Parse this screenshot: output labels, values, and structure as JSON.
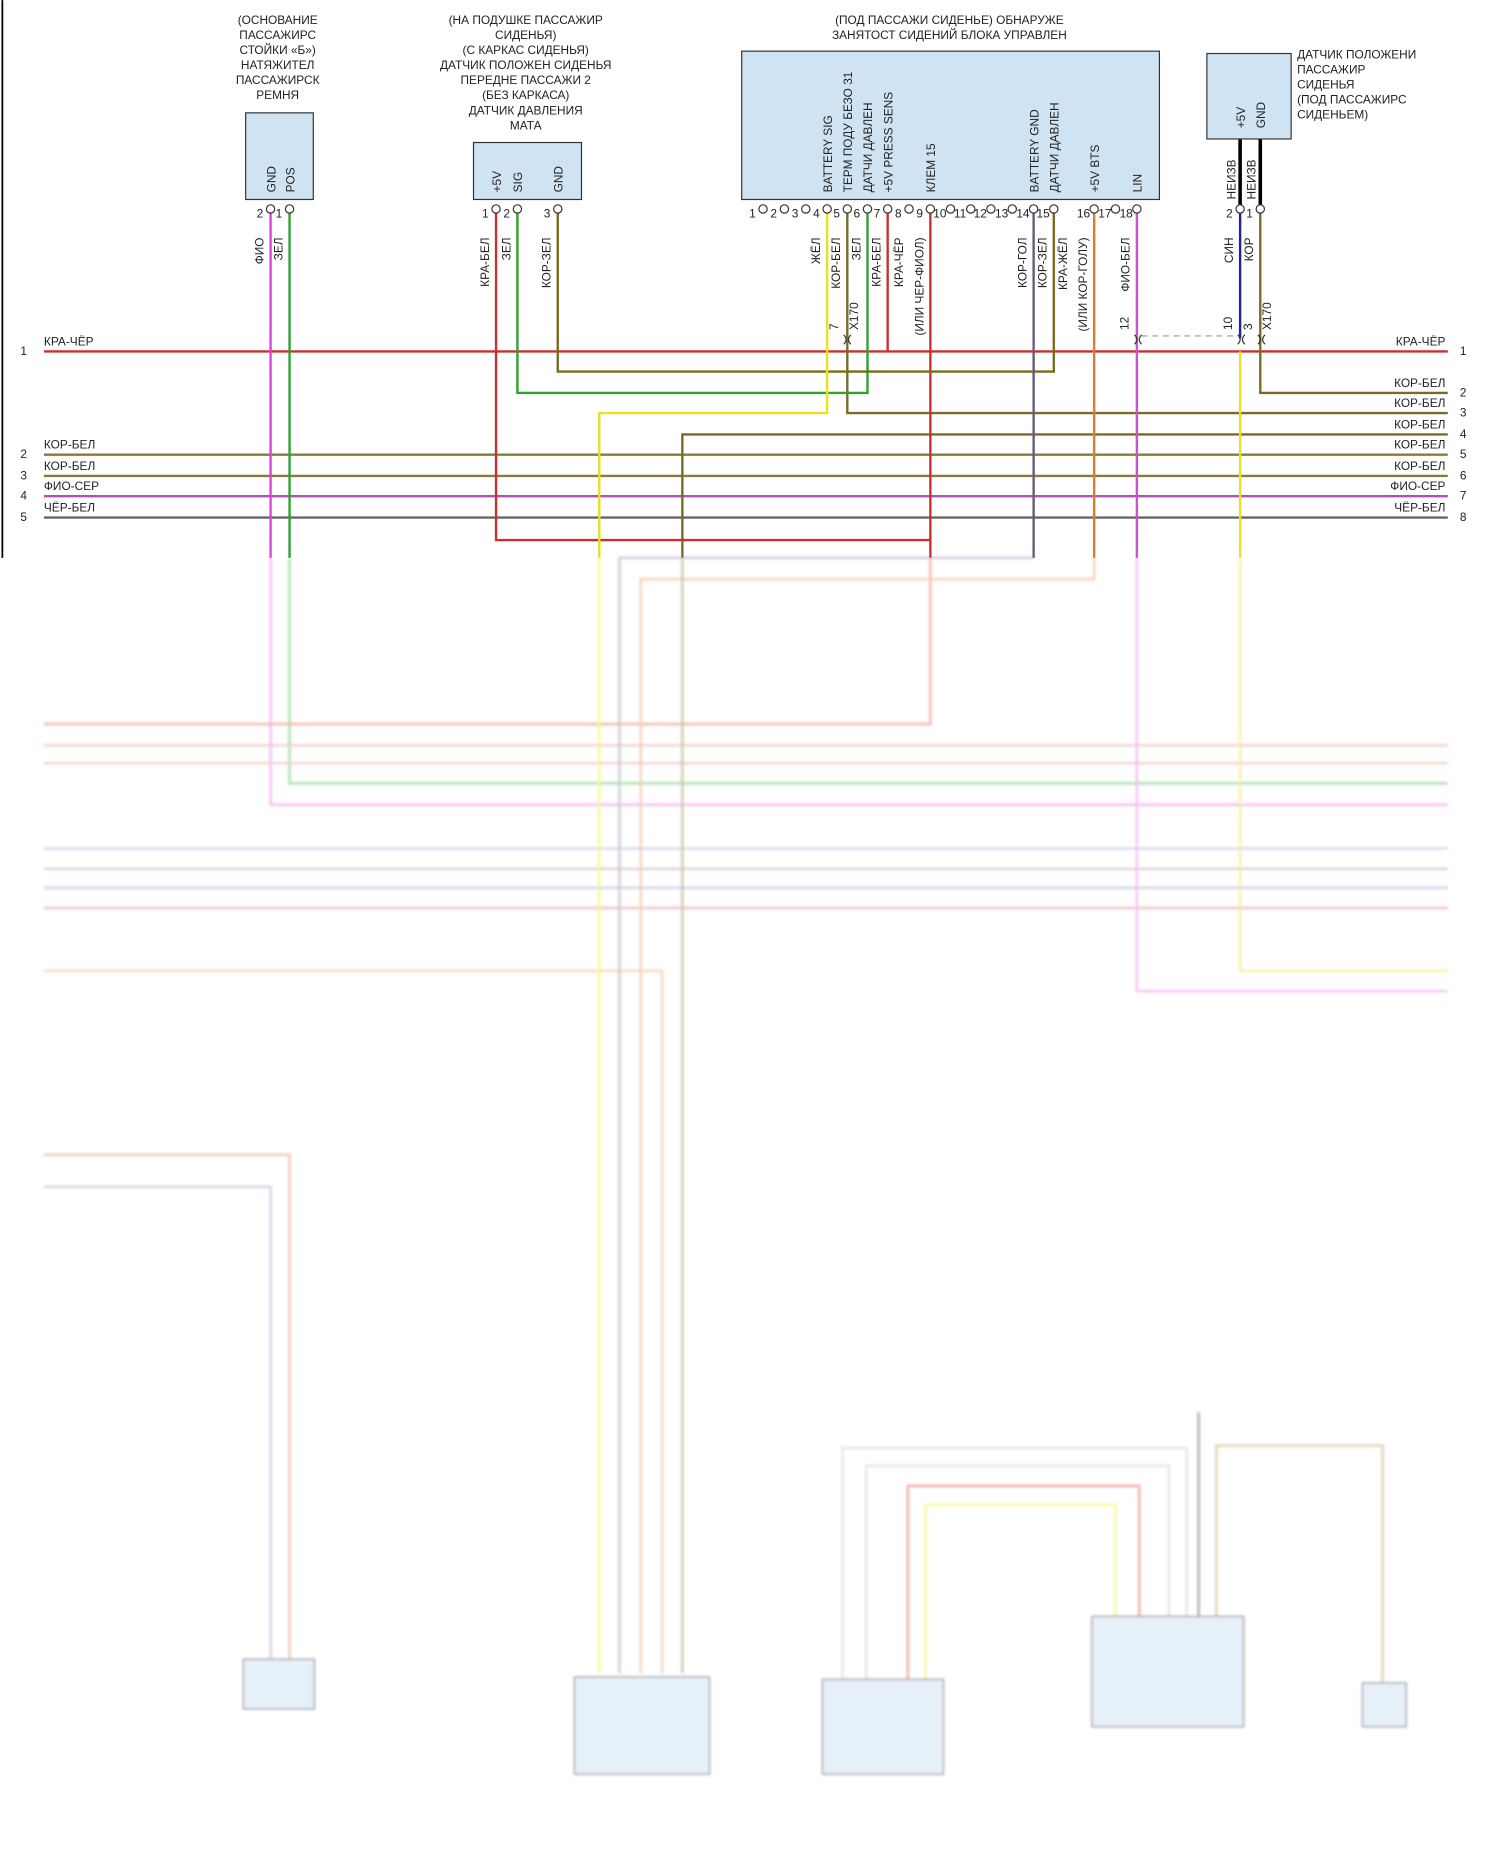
{
  "components": [
    {
      "label": [
        "(ОСНОВАНИЕ",
        "ПАССАЖИРС",
        "СТОЙКИ «Б»)",
        "НАТЯЖИТЕЛ",
        "ПАССАЖИРСК",
        "РЕМНЯ"
      ],
      "pins": [
        {
          "name": "GND",
          "number": "2",
          "wire": [
            "ФИО"
          ]
        },
        {
          "name": "POS",
          "number": "1",
          "wire": [
            "ЗЕЛ"
          ]
        }
      ]
    },
    {
      "label": [
        "(НА ПОДУШКЕ ПАССАЖИР",
        "СИДЕНЬЯ)",
        "(С КАРКАС СИДЕНЬЯ)",
        "ДАТЧИК ПОЛОЖЕН СИДЕНЬЯ",
        "ПЕРЕДНЕ ПАССАЖИ 2",
        "(БЕЗ КАРКАСА)",
        "ДАТЧИК ДАВЛЕНИЯ",
        "МАТА"
      ],
      "pins": [
        {
          "name": "+5V",
          "number": "1",
          "wire": [
            "КРА-БЕЛ"
          ]
        },
        {
          "name": "SIG",
          "number": "2",
          "wire": [
            "ЗЕЛ"
          ]
        },
        {
          "name": "GND",
          "number": "3",
          "wire": [
            "КОР-ЗЕЛ"
          ]
        }
      ]
    },
    {
      "label": [
        "(ПОД ПАССАЖИ СИДЕНЬЕ) ОБНАРУЖЕ",
        "ЗАНЯТОСТ СИДЕНИЙ БЛОКА УПРАВЛЕН"
      ],
      "pins": [
        {
          "number": "1"
        },
        {
          "number": "2"
        },
        {
          "number": "3"
        },
        {
          "name": "BATTERY SIG",
          "number": "4",
          "wire": [
            "ЖЁЛ"
          ]
        },
        {
          "name": "ТЕРМ ПОДУ БЕЗО 31",
          "number": "5",
          "wire": [
            "КОР-БЕЛ"
          ]
        },
        {
          "name": "ДАТЧИ ДАВЛЕН",
          "number": "6",
          "wire": [
            "ЗЕЛ"
          ]
        },
        {
          "name": "+5V PRESS SENS",
          "number": "7",
          "wire": [
            "КРА-БЕЛ"
          ]
        },
        {
          "number": "8"
        },
        {
          "name": "КЛЕМ 15",
          "number": "9",
          "wire": [
            "КРА-ЧЁР",
            "(ИЛИ ЧЕР-ФИОЛ)"
          ]
        },
        {
          "number": "10"
        },
        {
          "number": "11"
        },
        {
          "number": "12"
        },
        {
          "number": "13"
        },
        {
          "name": "BATTERY GND",
          "number": "14",
          "wire": [
            "КОР-ГОЛ"
          ]
        },
        {
          "name": "ДАТЧИ ДАВЛЕН",
          "number": "15",
          "wire": [
            "КОР-ЗЕЛ"
          ]
        },
        {
          "name": "+5V BTS",
          "number": "16",
          "wire": [
            "КРА-ЖЁЛ",
            "(ИЛИ КОР-ГОЛУ)"
          ]
        },
        {
          "number": "17"
        },
        {
          "name": "LIN",
          "number": "18",
          "wire": [
            "ФИО-БЕЛ"
          ]
        }
      ]
    },
    {
      "label": [
        "ДАТЧИК ПОЛОЖЕНИ",
        "ПАССАЖИР",
        "СИДЕНЬЯ",
        "(ПОД ПАССАЖИРС",
        "СИДЕНЬЕМ)"
      ],
      "pins": [
        {
          "name": "+5V",
          "number": "2",
          "wire": [
            "НЕИЗВ",
            "СИН"
          ]
        },
        {
          "name": "GND",
          "number": "1",
          "wire": [
            "НЕИЗВ",
            "КОР"
          ]
        }
      ]
    }
  ],
  "connectors": [
    {
      "pins": [
        "7"
      ],
      "name": "X170"
    },
    {
      "pins": [
        "12"
      ]
    },
    {
      "pins": [
        "10",
        "3"
      ],
      "name": "X170"
    }
  ],
  "rails_left": [
    {
      "number": "1",
      "label": "КРА-ЧЁР"
    },
    {
      "number": "2",
      "label": "КОР-БЕЛ"
    },
    {
      "number": "3",
      "label": "КОР-БЕЛ"
    },
    {
      "number": "4",
      "label": "ФИО-СЕР"
    },
    {
      "number": "5",
      "label": "ЧЁР-БЕЛ"
    }
  ],
  "rails_right": [
    {
      "number": "1",
      "label": "КРА-ЧЁР"
    },
    {
      "number": "2",
      "label": "КОР-БЕЛ"
    },
    {
      "number": "3",
      "label": "КОР-БЕЛ"
    },
    {
      "number": "4",
      "label": "КОР-БЕЛ"
    },
    {
      "number": "5",
      "label": "КОР-БЕЛ"
    },
    {
      "number": "6",
      "label": "КОР-БЕЛ"
    },
    {
      "number": "7",
      "label": "ФИО-СЕР"
    },
    {
      "number": "8",
      "label": "ЧЁР-БЕЛ"
    }
  ]
}
